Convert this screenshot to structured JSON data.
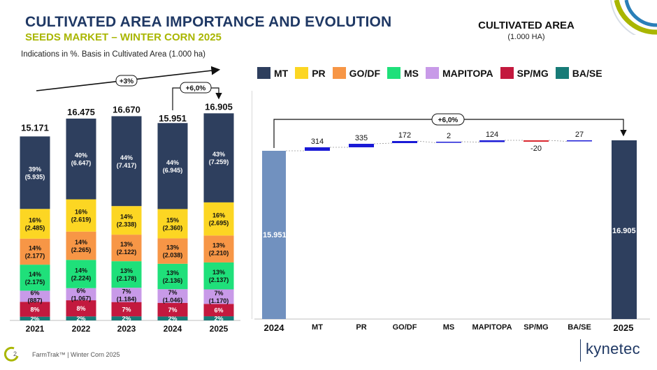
{
  "header": {
    "title": "CULTIVATED AREA IMPORTANCE AND EVOLUTION",
    "subtitle": "SEEDS MARKET – WINTER CORN 2025",
    "note": "Indications in %. Basis in Cultivated Area (1.000 ha)",
    "right_title": "CULTIVATED AREA",
    "right_unit": "(1.000 HA)"
  },
  "footer": {
    "page": "2",
    "text": "FarmTrak™ | Winter Corn 2025",
    "brand": "kynetec"
  },
  "legend": [
    {
      "label": "MT",
      "color": "#2e3f5e"
    },
    {
      "label": "PR",
      "color": "#fcd623"
    },
    {
      "label": "GO/DF",
      "color": "#f79646"
    },
    {
      "label": "MS",
      "color": "#1fe07a"
    },
    {
      "label": "MAPITOPA",
      "color": "#c89ae8"
    },
    {
      "label": "SP/MG",
      "color": "#c3193e"
    },
    {
      "label": "BA/SE",
      "color": "#177b77"
    }
  ],
  "chart_data": [
    {
      "type": "bar",
      "stacked": true,
      "categories": [
        "2021",
        "2022",
        "2023",
        "2024",
        "2025"
      ],
      "totals": [
        "15.171",
        "16.475",
        "16.670",
        "15.951",
        "16.905"
      ],
      "total_values": [
        15171,
        16475,
        16670,
        15951,
        16905
      ],
      "series": [
        {
          "name": "BA/SE",
          "color": "#177b77",
          "pct": [
            2,
            2,
            2,
            2,
            2
          ],
          "labels": [
            "2%",
            "2%",
            "2%",
            "2%",
            "2%"
          ],
          "values": [
            "",
            "",
            "",
            "",
            ""
          ]
        },
        {
          "name": "SP/MG",
          "color": "#c3193e",
          "pct": [
            8,
            8,
            7,
            7,
            6
          ],
          "labels": [
            "8%",
            "8%",
            "7%",
            "7%",
            "6%"
          ],
          "values": [
            "",
            "",
            "",
            "",
            ""
          ]
        },
        {
          "name": "MAPITOPA",
          "color": "#c89ae8",
          "pct": [
            6,
            6,
            7,
            7,
            7
          ],
          "labels": [
            "6%",
            "6%",
            "7%",
            "7%",
            "7%"
          ],
          "values": [
            "(887)",
            "(1.067)",
            "(1.184)",
            "(1.046)",
            "(1.170)"
          ]
        },
        {
          "name": "MS",
          "color": "#1fe07a",
          "pct": [
            14,
            14,
            13,
            13,
            13
          ],
          "labels": [
            "14%",
            "14%",
            "13%",
            "13%",
            "13%"
          ],
          "values": [
            "(2.175)",
            "(2.224)",
            "(2.178)",
            "(2.136)",
            "(2.137)"
          ]
        },
        {
          "name": "GO/DF",
          "color": "#f79646",
          "pct": [
            14,
            14,
            13,
            13,
            13
          ],
          "labels": [
            "14%",
            "14%",
            "13%",
            "13%",
            "13%"
          ],
          "values": [
            "(2.177)",
            "(2.265)",
            "(2.122)",
            "(2.038)",
            "(2.210)"
          ]
        },
        {
          "name": "PR",
          "color": "#fcd623",
          "pct": [
            16,
            16,
            14,
            15,
            16
          ],
          "labels": [
            "16%",
            "16%",
            "14%",
            "15%",
            "16%"
          ],
          "values": [
            "(2.485)",
            "(2.619)",
            "(2.338)",
            "(2.360)",
            "(2.695)"
          ]
        },
        {
          "name": "MT",
          "color": "#2e3f5e",
          "pct": [
            39,
            40,
            44,
            44,
            43
          ],
          "labels": [
            "39%",
            "40%",
            "44%",
            "44%",
            "43%"
          ],
          "values": [
            "(5.935)",
            "(6.647)",
            "(7.417)",
            "(6.945)",
            "(7.259)"
          ]
        }
      ],
      "annotations": [
        {
          "text": "+3%",
          "from": "2021",
          "to": "2025"
        },
        {
          "text": "+6,0%",
          "from": "2024",
          "to": "2025"
        }
      ]
    },
    {
      "type": "waterfall",
      "categories": [
        "2024",
        "MT",
        "PR",
        "GO/DF",
        "MS",
        "MAPITOPA",
        "SP/MG",
        "BA/SE",
        "2025"
      ],
      "start": 15951,
      "start_label": "15.951",
      "end": 16905,
      "end_label": "16.905",
      "deltas": [
        314,
        335,
        172,
        2,
        124,
        -20,
        27
      ],
      "delta_labels": [
        "314",
        "335",
        "172",
        "2",
        "124",
        "-20",
        "27"
      ],
      "ylim": [
        0,
        16905
      ],
      "annotation": "+6,0%"
    }
  ]
}
